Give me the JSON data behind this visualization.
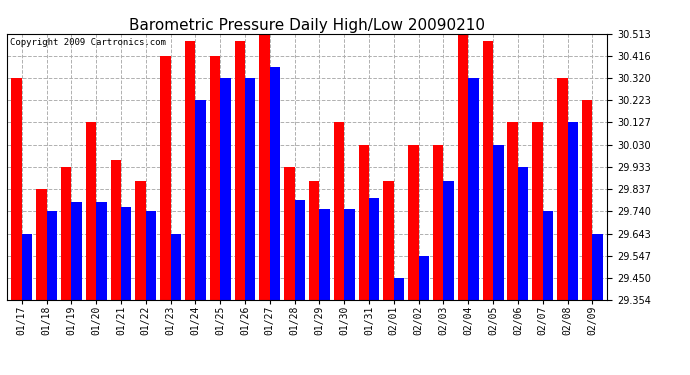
{
  "title": "Barometric Pressure Daily High/Low 20090210",
  "copyright": "Copyright 2009 Cartronics.com",
  "dates": [
    "01/17",
    "01/18",
    "01/19",
    "01/20",
    "01/21",
    "01/22",
    "01/23",
    "01/24",
    "01/25",
    "01/26",
    "01/27",
    "01/28",
    "01/29",
    "01/30",
    "01/31",
    "02/01",
    "02/02",
    "02/03",
    "02/04",
    "02/05",
    "02/06",
    "02/07",
    "02/08",
    "02/09"
  ],
  "high": [
    30.32,
    29.837,
    29.933,
    30.127,
    29.963,
    29.87,
    30.416,
    30.48,
    30.416,
    30.48,
    30.513,
    29.933,
    29.87,
    30.127,
    30.03,
    29.87,
    30.03,
    30.03,
    30.513,
    30.48,
    30.127,
    30.127,
    30.32,
    30.223
  ],
  "low": [
    29.643,
    29.74,
    29.78,
    29.78,
    29.76,
    29.74,
    29.643,
    30.223,
    30.32,
    30.32,
    30.37,
    29.79,
    29.75,
    29.75,
    29.8,
    29.45,
    29.547,
    29.87,
    30.32,
    30.03,
    29.933,
    29.74,
    30.127,
    29.643
  ],
  "ylim_min": 29.354,
  "ylim_max": 30.513,
  "yticks": [
    29.354,
    29.45,
    29.547,
    29.643,
    29.74,
    29.837,
    29.933,
    30.03,
    30.127,
    30.223,
    30.32,
    30.416,
    30.513
  ],
  "bar_color_high": "#ff0000",
  "bar_color_low": "#0000ff",
  "background_color": "#ffffff",
  "grid_color": "#b0b0b0",
  "title_fontsize": 11,
  "copyright_fontsize": 6.5,
  "tick_fontsize": 7
}
